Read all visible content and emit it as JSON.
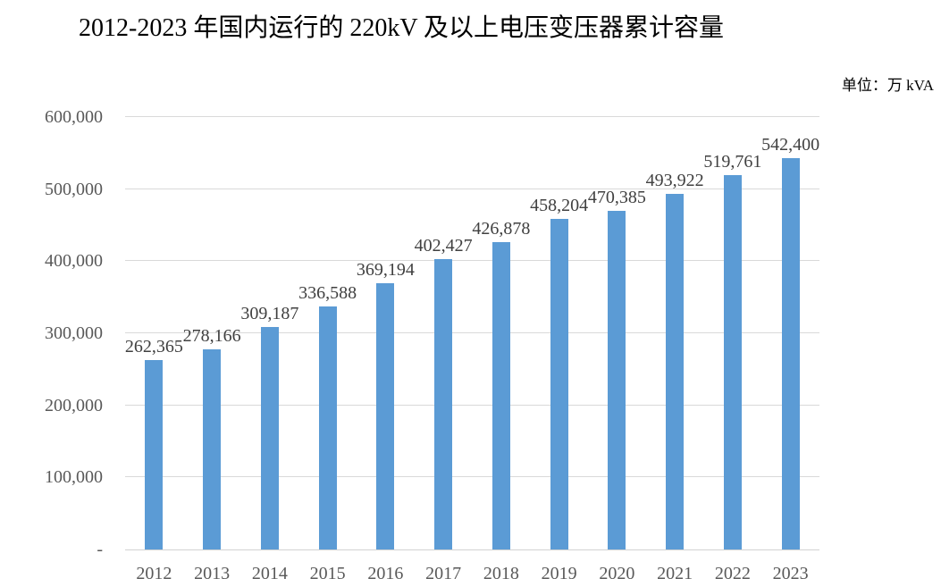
{
  "chart_data": {
    "type": "bar",
    "title": "2012-2023 年国内运行的 220kV 及以上电压变压器累计容量",
    "unit_label": "单位：万 kVA",
    "categories": [
      "2012",
      "2013",
      "2014",
      "2015",
      "2016",
      "2017",
      "2018",
      "2019",
      "2020",
      "2021",
      "2022",
      "2023"
    ],
    "values": [
      262365,
      278166,
      309187,
      336588,
      369194,
      402427,
      426878,
      458204,
      470385,
      493922,
      519761,
      542400
    ],
    "data_labels": [
      "262,365",
      "278,166",
      "309,187",
      "336,588",
      "369,194",
      "402,427",
      "426,878",
      "458,204",
      "470,385",
      "493,922",
      "519,761",
      "542,400"
    ],
    "xlabel": "",
    "ylabel": "",
    "ylim": [
      0,
      600000
    ],
    "ytick_step": 100000,
    "ytick_labels": [
      "-",
      "100,000",
      "200,000",
      "300,000",
      "400,000",
      "500,000",
      "600,000"
    ],
    "grid": true,
    "legend": "none",
    "colors": {
      "bar": "#5B9BD5",
      "gridline": "#D9D9D9",
      "axis_line": "#D2D2D2",
      "axis_text": "#595959",
      "data_label_text": "#404040",
      "title_text": "#000000"
    }
  }
}
